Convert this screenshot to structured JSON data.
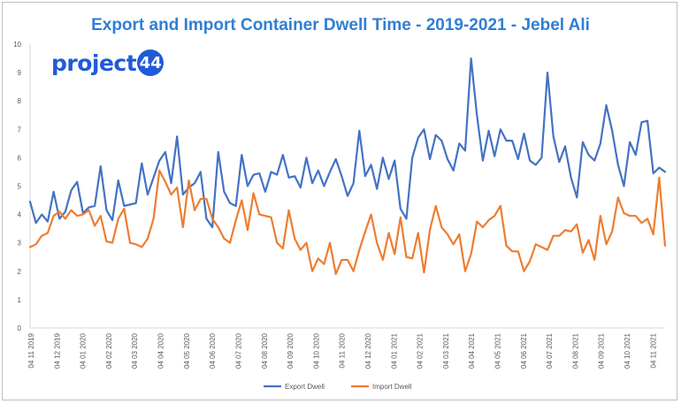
{
  "chart_data": {
    "type": "line",
    "title": "Export and Import Container Dwell Time - 2019-2021 - Jebel Ali",
    "logo_text": "project",
    "logo_badge": "44",
    "ylim": [
      0,
      10
    ],
    "y_ticks": [
      0,
      1,
      2,
      3,
      4,
      5,
      6,
      7,
      8,
      9,
      10
    ],
    "x_tick_labels": [
      "04 11 2019",
      "04 12 2019",
      "04 01 2020",
      "04 02 2020",
      "04 03 2020",
      "04 04 2020",
      "04 05 2020",
      "04 06 2020",
      "04 07 2020",
      "04 08 2020",
      "04 09 2020",
      "04 10 2020",
      "04 11 2020",
      "04 12 2020",
      "04 01 2021",
      "04 02 2021",
      "04 03 2021",
      "04 04 2021",
      "04 05 2021",
      "04 06 2021",
      "04 07 2021",
      "04 08 2021",
      "04 09 2021",
      "04 10 2021",
      "04 11 2021"
    ],
    "grid": false,
    "legend_position": "bottom",
    "series": [
      {
        "name": "Export Dwell",
        "color": "#4472c4",
        "values": [
          4.45,
          3.7,
          4.0,
          3.75,
          4.8,
          3.85,
          4.1,
          4.85,
          5.15,
          4.05,
          4.25,
          4.3,
          5.7,
          4.15,
          3.8,
          5.2,
          4.3,
          4.35,
          4.4,
          5.8,
          4.7,
          5.3,
          5.9,
          6.2,
          5.1,
          6.75,
          4.7,
          4.95,
          5.1,
          5.5,
          3.85,
          3.55,
          6.2,
          4.8,
          4.4,
          4.3,
          6.1,
          5.0,
          5.4,
          5.45,
          4.8,
          5.5,
          5.4,
          6.1,
          5.3,
          5.35,
          4.95,
          6.0,
          5.1,
          5.55,
          5.0,
          5.5,
          5.95,
          5.35,
          4.65,
          5.1,
          6.95,
          5.35,
          5.75,
          4.9,
          6.0,
          5.25,
          5.9,
          4.2,
          3.85,
          6.0,
          6.7,
          7.0,
          5.95,
          6.8,
          6.6,
          5.95,
          5.55,
          6.5,
          6.25,
          9.5,
          7.5,
          5.9,
          6.95,
          6.05,
          7.0,
          6.6,
          6.6,
          5.95,
          6.85,
          5.9,
          5.75,
          6.0,
          9.0,
          6.75,
          5.85,
          6.4,
          5.3,
          4.6,
          6.55,
          6.1,
          5.9,
          6.5,
          7.85,
          6.95,
          5.75,
          5.0,
          6.55,
          6.1,
          7.25,
          7.3,
          5.45,
          5.65,
          5.5
        ]
      },
      {
        "name": "Import Dwell",
        "color": "#ed7d31",
        "values": [
          2.85,
          2.95,
          3.25,
          3.35,
          3.95,
          4.1,
          3.85,
          4.15,
          3.95,
          4.0,
          4.15,
          3.6,
          3.95,
          3.05,
          3.0,
          3.85,
          4.2,
          3.0,
          2.95,
          2.85,
          3.15,
          3.85,
          5.55,
          5.15,
          4.7,
          4.95,
          3.55,
          5.2,
          4.15,
          4.55,
          4.55,
          3.85,
          3.55,
          3.15,
          3.0,
          3.8,
          4.5,
          3.45,
          4.75,
          4.0,
          3.95,
          3.9,
          3.0,
          2.8,
          4.15,
          3.15,
          2.75,
          3.0,
          2.0,
          2.45,
          2.25,
          3.0,
          1.9,
          2.4,
          2.4,
          2.0,
          2.75,
          3.4,
          4.0,
          3.0,
          2.4,
          3.35,
          2.6,
          3.9,
          2.5,
          2.45,
          3.35,
          1.95,
          3.45,
          4.3,
          3.55,
          3.3,
          2.95,
          3.3,
          2.0,
          2.6,
          3.75,
          3.55,
          3.8,
          3.95,
          4.3,
          2.9,
          2.7,
          2.7,
          2.0,
          2.35,
          2.95,
          2.85,
          2.75,
          3.25,
          3.25,
          3.45,
          3.4,
          3.65,
          2.65,
          3.1,
          2.4,
          3.95,
          2.95,
          3.4,
          4.6,
          4.05,
          3.95,
          3.95,
          3.7,
          3.85,
          3.3,
          5.3,
          2.9
        ]
      }
    ]
  }
}
